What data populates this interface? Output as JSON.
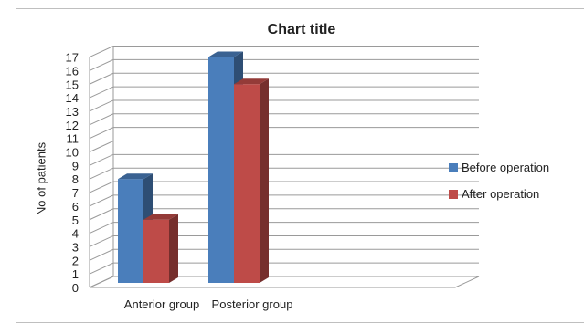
{
  "chart_data": {
    "type": "bar",
    "title": "Chart title",
    "ylabel": "No of patients",
    "xlabel": "",
    "categories": [
      "Anterior group",
      "Posterior group"
    ],
    "ylim": [
      0,
      17
    ],
    "yticks": [
      0,
      1,
      2,
      3,
      4,
      5,
      6,
      7,
      8,
      9,
      10,
      11,
      12,
      13,
      14,
      15,
      16,
      17
    ],
    "grid": true,
    "legend_position": "right",
    "series": [
      {
        "name": "Before operation",
        "values": [
          8,
          17
        ],
        "color": "#4a7ebb"
      },
      {
        "name": "After operation",
        "values": [
          5,
          15
        ],
        "color": "#be4b48"
      }
    ]
  }
}
